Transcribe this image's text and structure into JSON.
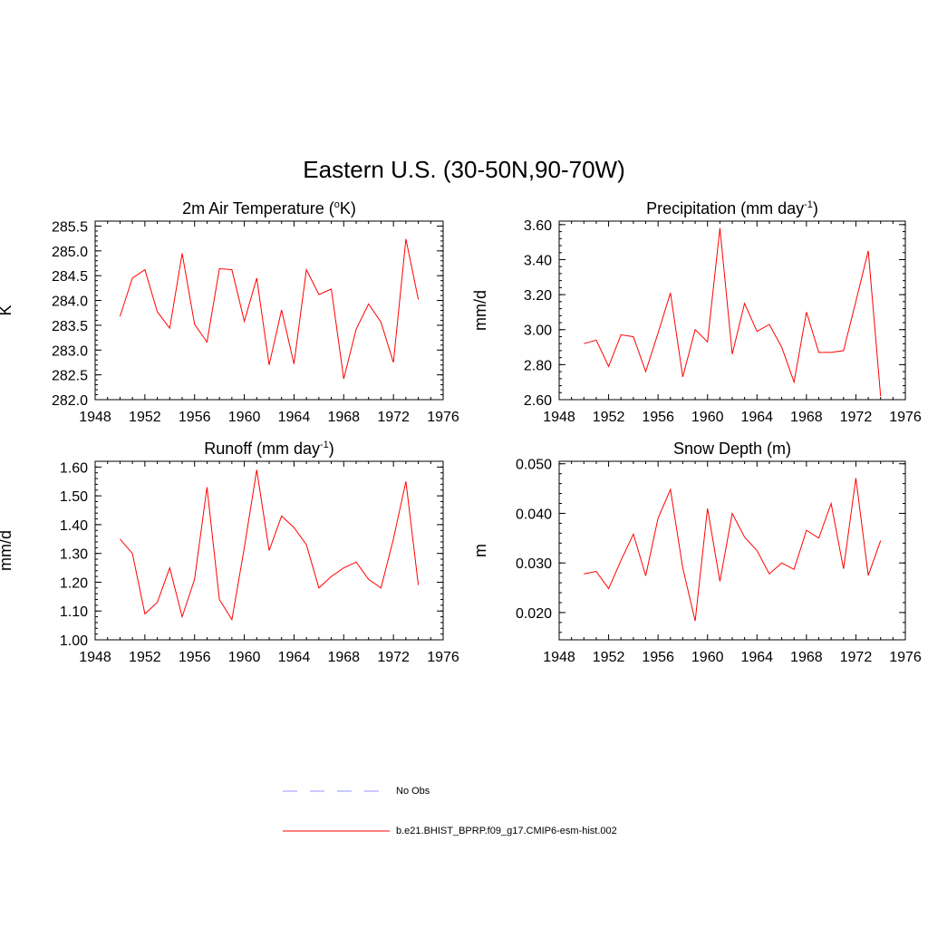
{
  "title": "Eastern U.S. (30-50N,90-70W)",
  "colors": {
    "series": "#ff0000",
    "obs": "#aaaaff",
    "axis": "#000000"
  },
  "legend": [
    {
      "label": "No Obs",
      "style": "dashed",
      "color": "#aaaaff"
    },
    {
      "label": "b.e21.BHIST_BPRP.f09_g17.CMIP6-esm-hist.002",
      "style": "solid",
      "color": "#ff0000"
    }
  ],
  "chart_data": [
    {
      "type": "line",
      "title_main": "2m Air Temperature (",
      "title_sup": "o",
      "title_tail": "K)",
      "ylabel": "K",
      "xlim": [
        1948,
        1976
      ],
      "xticks": [
        1948,
        1952,
        1956,
        1960,
        1964,
        1968,
        1972,
        1976
      ],
      "xtick_labels": [
        "1948",
        "1952",
        "1956",
        "1960",
        "1964",
        "1968",
        "1972",
        "1976"
      ],
      "ylim": [
        282.0,
        285.6
      ],
      "yticks": [
        282.0,
        282.5,
        283.0,
        283.5,
        284.0,
        284.5,
        285.0,
        285.5
      ],
      "ytick_labels": [
        "282.0",
        "282.5",
        "283.0",
        "283.5",
        "284.0",
        "284.5",
        "285.0",
        "285.5"
      ],
      "yminor_step": 0.1,
      "x": [
        1950,
        1951,
        1952,
        1953,
        1954,
        1955,
        1956,
        1957,
        1958,
        1959,
        1960,
        1961,
        1962,
        1963,
        1964,
        1965,
        1966,
        1967,
        1968,
        1969,
        1970,
        1971,
        1972,
        1973,
        1974
      ],
      "y": [
        283.68,
        284.45,
        284.62,
        283.77,
        283.44,
        284.95,
        283.52,
        283.16,
        284.64,
        284.62,
        283.58,
        284.45,
        282.7,
        283.81,
        282.72,
        284.62,
        284.12,
        284.23,
        282.42,
        283.42,
        283.93,
        283.56,
        282.75,
        285.24,
        284.02
      ]
    },
    {
      "type": "line",
      "title_main": "Precipitation (mm day",
      "title_sup": "-1",
      "title_tail": ")",
      "ylabel": "mm/d",
      "xlim": [
        1948,
        1976
      ],
      "xticks": [
        1948,
        1952,
        1956,
        1960,
        1964,
        1968,
        1972,
        1976
      ],
      "xtick_labels": [
        "1948",
        "1952",
        "1956",
        "1960",
        "1964",
        "1968",
        "1972",
        "1976"
      ],
      "ylim": [
        2.6,
        3.62
      ],
      "yticks": [
        2.6,
        2.8,
        3.0,
        3.2,
        3.4,
        3.6
      ],
      "ytick_labels": [
        "2.60",
        "2.80",
        "3.00",
        "3.20",
        "3.40",
        "3.60"
      ],
      "yminor_step": 0.04,
      "x": [
        1950,
        1951,
        1952,
        1953,
        1954,
        1955,
        1956,
        1957,
        1958,
        1959,
        1960,
        1961,
        1962,
        1963,
        1964,
        1965,
        1966,
        1967,
        1968,
        1969,
        1970,
        1971,
        1972,
        1973,
        1974
      ],
      "y": [
        2.92,
        2.94,
        2.79,
        2.97,
        2.96,
        2.76,
        2.98,
        3.21,
        2.73,
        3.0,
        2.93,
        3.58,
        2.86,
        3.15,
        2.99,
        3.03,
        2.9,
        2.7,
        3.1,
        2.87,
        2.87,
        2.88,
        3.16,
        3.45,
        2.62
      ]
    },
    {
      "type": "line",
      "title_main": "Runoff (mm day",
      "title_sup": "-1",
      "title_tail": ")",
      "ylabel": "mm/d",
      "xlim": [
        1948,
        1976
      ],
      "xticks": [
        1948,
        1952,
        1956,
        1960,
        1964,
        1968,
        1972,
        1976
      ],
      "xtick_labels": [
        "1948",
        "1952",
        "1956",
        "1960",
        "1964",
        "1968",
        "1972",
        "1976"
      ],
      "ylim": [
        1.0,
        1.62
      ],
      "yticks": [
        1.0,
        1.1,
        1.2,
        1.3,
        1.4,
        1.5,
        1.6
      ],
      "ytick_labels": [
        "1.00",
        "1.10",
        "1.20",
        "1.30",
        "1.40",
        "1.50",
        "1.60"
      ],
      "yminor_step": 0.02,
      "x": [
        1950,
        1951,
        1952,
        1953,
        1954,
        1955,
        1956,
        1957,
        1958,
        1959,
        1960,
        1961,
        1962,
        1963,
        1964,
        1965,
        1966,
        1967,
        1968,
        1969,
        1970,
        1971,
        1972,
        1973,
        1974
      ],
      "y": [
        1.35,
        1.3,
        1.09,
        1.13,
        1.25,
        1.08,
        1.21,
        1.53,
        1.14,
        1.07,
        1.32,
        1.59,
        1.31,
        1.43,
        1.39,
        1.33,
        1.18,
        1.22,
        1.25,
        1.27,
        1.21,
        1.18,
        1.35,
        1.55,
        1.19
      ]
    },
    {
      "type": "line",
      "title_main": "Snow Depth (m)",
      "title_sup": "",
      "title_tail": "",
      "ylabel": "m",
      "xlim": [
        1948,
        1976
      ],
      "xticks": [
        1948,
        1952,
        1956,
        1960,
        1964,
        1968,
        1972,
        1976
      ],
      "xtick_labels": [
        "1948",
        "1952",
        "1956",
        "1960",
        "1964",
        "1968",
        "1972",
        "1976"
      ],
      "ylim": [
        0.0145,
        0.0505
      ],
      "yticks": [
        0.02,
        0.03,
        0.04,
        0.05
      ],
      "ytick_labels": [
        "0.020",
        "0.030",
        "0.040",
        "0.050"
      ],
      "yminor_step": 0.002,
      "x": [
        1950,
        1951,
        1952,
        1953,
        1954,
        1955,
        1956,
        1957,
        1958,
        1959,
        1960,
        1961,
        1962,
        1963,
        1964,
        1965,
        1966,
        1967,
        1968,
        1969,
        1970,
        1971,
        1972,
        1973,
        1974
      ],
      "y": [
        0.0278,
        0.0283,
        0.0248,
        0.0305,
        0.0358,
        0.0274,
        0.039,
        0.0448,
        0.029,
        0.0183,
        0.041,
        0.0263,
        0.04,
        0.0352,
        0.0325,
        0.0278,
        0.03,
        0.0287,
        0.0366,
        0.035,
        0.042,
        0.0288,
        0.0471,
        0.0275,
        0.0345
      ]
    }
  ]
}
